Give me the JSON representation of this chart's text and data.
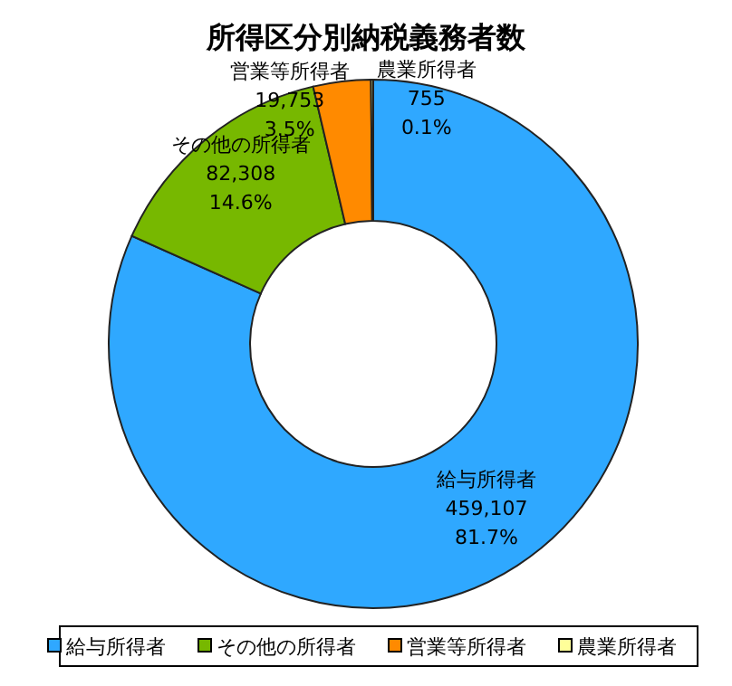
{
  "chart_data": {
    "type": "donut",
    "title": "所得区分別納税義務者数",
    "categories": [
      "給与所得者",
      "その他の所得者",
      "営業等所得者",
      "農業所得者"
    ],
    "values": [
      459107,
      82308,
      19753,
      755
    ],
    "value_labels": [
      "459,107\n81.7%",
      "82,308\n14.6%",
      "19,753\n3.5%",
      "755\n0.1%"
    ],
    "colors": [
      "#2fa8ff",
      "#77b800",
      "#ff8a00",
      "#ffff99"
    ],
    "legend": "bottom"
  }
}
